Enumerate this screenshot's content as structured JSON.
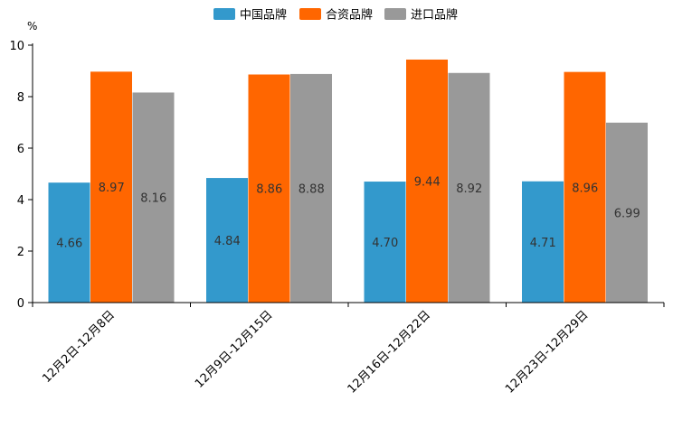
{
  "chart_data": {
    "type": "bar",
    "title": "",
    "ylabel": "%",
    "xlabel": "",
    "ylim": [
      0,
      10
    ],
    "yticks": [
      0,
      2,
      4,
      6,
      8,
      10
    ],
    "grid": false,
    "legend_position": "top-center",
    "categories": [
      "12月2日-12月8日",
      "12月9日-12月15日",
      "12月16日-12月22日",
      "12月23日-12月29日"
    ],
    "series": [
      {
        "name": "中国品牌",
        "color": "#3399CC",
        "values": [
          4.66,
          4.84,
          4.7,
          4.71
        ],
        "labels": [
          "4.66",
          "4.84",
          "4.70",
          "4.71"
        ]
      },
      {
        "name": "合资品牌",
        "color": "#FF6600",
        "values": [
          8.97,
          8.86,
          9.44,
          8.96
        ],
        "labels": [
          "8.97",
          "8.86",
          "9.44",
          "8.96"
        ]
      },
      {
        "name": "进口品牌",
        "color": "#999999",
        "values": [
          8.16,
          8.88,
          8.92,
          6.99
        ],
        "labels": [
          "8.16",
          "8.88",
          "8.92",
          "6.99"
        ]
      }
    ]
  }
}
